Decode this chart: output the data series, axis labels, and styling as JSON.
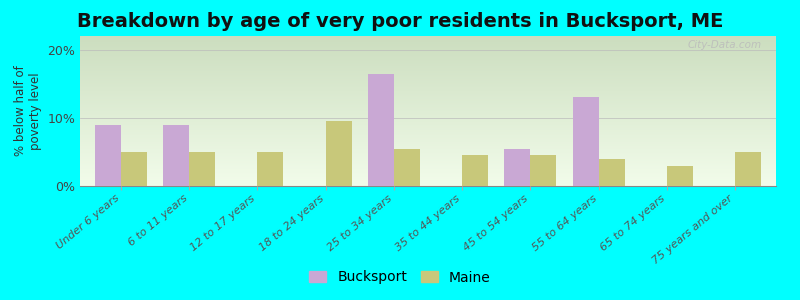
{
  "title": "Breakdown by age of very poor residents in Bucksport, ME",
  "categories": [
    "Under 6 years",
    "6 to 11 years",
    "12 to 17 years",
    "18 to 24 years",
    "25 to 34 years",
    "35 to 44 years",
    "45 to 54 years",
    "55 to 64 years",
    "65 to 74 years",
    "75 years and over"
  ],
  "bucksport": [
    9.0,
    9.0,
    0.0,
    0.0,
    16.5,
    0.0,
    5.5,
    13.0,
    0.0,
    0.0
  ],
  "maine": [
    5.0,
    5.0,
    5.0,
    9.5,
    5.5,
    4.5,
    4.5,
    4.0,
    3.0,
    5.0
  ],
  "bucksport_color": "#c9a8d4",
  "maine_color": "#c8c87a",
  "background_color": "#00ffff",
  "ylabel": "% below half of\npoverty level",
  "ylim": [
    0,
    22
  ],
  "yticks": [
    0,
    10,
    20
  ],
  "ytick_labels": [
    "0%",
    "10%",
    "20%"
  ],
  "title_fontsize": 14,
  "legend_bucksport": "Bucksport",
  "legend_maine": "Maine",
  "watermark": "City-Data.com"
}
